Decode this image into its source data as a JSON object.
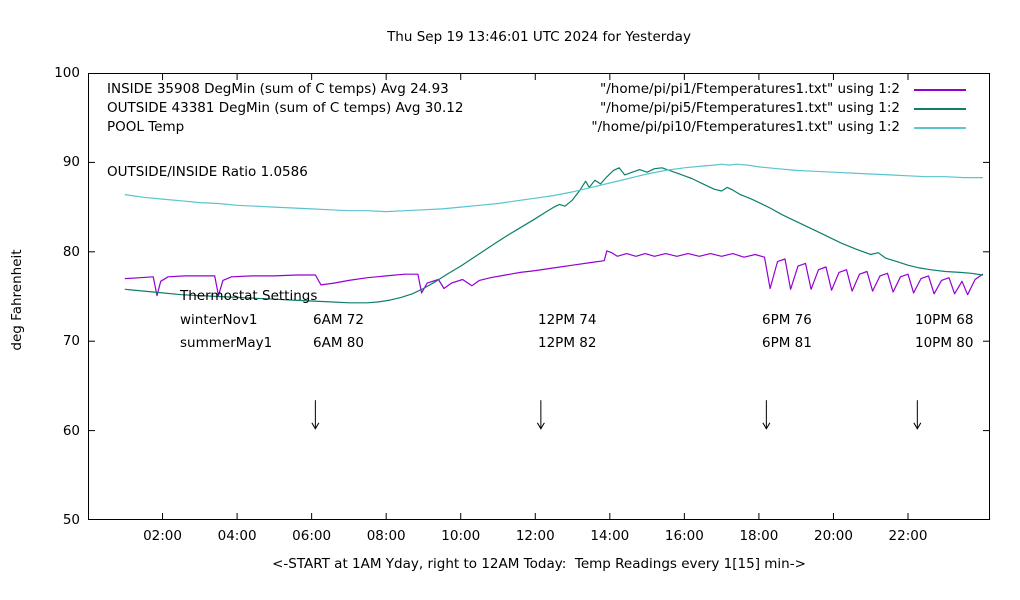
{
  "title": "Thu Sep 19 13:46:01 UTC 2024 for Yesterday",
  "ylabel": "deg Fahrenheit",
  "xlabel": "<-START at 1AM Yday, right to 12AM Today:  Temp Readings every 1[15] min->",
  "ratio_note": "OUTSIDE/INSIDE Ratio 1.0586",
  "legend": {
    "rows": [
      {
        "label": "INSIDE 35908 DegMin (sum of C temps) Avg 24.93",
        "source": "\"/home/pi/pi1/Ftemperatures1.txt\" using 1:2"
      },
      {
        "label": "OUTSIDE 43381 DegMin (sum of C temps) Avg 30.12",
        "source": "\"/home/pi/pi5/Ftemperatures1.txt\" using 1:2"
      },
      {
        "label": "POOL Temp",
        "source": "\"/home/pi/pi10/Ftemperatures1.txt\" using 1:2"
      }
    ]
  },
  "thermostat": {
    "heading": "Thermostat Settings",
    "rows": [
      {
        "name": "winterNov1",
        "settings": [
          "6AM 72",
          "12PM 74",
          "6PM 76",
          "10PM 68"
        ]
      },
      {
        "name": "summerMay1",
        "settings": [
          "6AM 80",
          "12PM 82",
          "6PM 81",
          "10PM 80"
        ]
      }
    ]
  },
  "chart_data": {
    "type": "line",
    "title": "Thu Sep 19 13:46:01 UTC 2024 for Yesterday",
    "xlabel": "<-START at 1AM Yday, right to 12AM Today:  Temp Readings every 1[15] min->",
    "ylabel": "deg Fahrenheit",
    "x_unit": "hour of day (1AM yesterday to 12AM today)",
    "xlim": [
      0,
      24.2
    ],
    "ylim": [
      50,
      100
    ],
    "grid": false,
    "legend_position": "top-left inside",
    "xticks": [
      {
        "h": 2,
        "label": "02:00"
      },
      {
        "h": 4,
        "label": "04:00"
      },
      {
        "h": 6,
        "label": "06:00"
      },
      {
        "h": 8,
        "label": "08:00"
      },
      {
        "h": 10,
        "label": "10:00"
      },
      {
        "h": 12,
        "label": "12:00"
      },
      {
        "h": 14,
        "label": "14:00"
      },
      {
        "h": 16,
        "label": "16:00"
      },
      {
        "h": 18,
        "label": "18:00"
      },
      {
        "h": 20,
        "label": "20:00"
      },
      {
        "h": 22,
        "label": "22:00"
      }
    ],
    "yticks": [
      50,
      60,
      70,
      80,
      90,
      100
    ],
    "arrow_marks": {
      "x_hours": [
        6.1,
        12.15,
        18.2,
        22.25
      ],
      "y_from": 63.4,
      "y_to": 60.2
    },
    "series": [
      {
        "name": "INSIDE",
        "color": "#9400d3",
        "points": [
          [
            1,
            77
          ],
          [
            1.4,
            77.1
          ],
          [
            1.75,
            77.2
          ],
          [
            1.85,
            75.1
          ],
          [
            1.95,
            76.7
          ],
          [
            2.15,
            77.2
          ],
          [
            2.6,
            77.3
          ],
          [
            3.1,
            77.3
          ],
          [
            3.4,
            77.3
          ],
          [
            3.5,
            75.1
          ],
          [
            3.62,
            76.8
          ],
          [
            3.85,
            77.2
          ],
          [
            4.4,
            77.3
          ],
          [
            5,
            77.3
          ],
          [
            5.6,
            77.4
          ],
          [
            6.1,
            77.4
          ],
          [
            6.25,
            76.3
          ],
          [
            6.6,
            76.5
          ],
          [
            7,
            76.8
          ],
          [
            7.5,
            77.1
          ],
          [
            8,
            77.3
          ],
          [
            8.5,
            77.5
          ],
          [
            8.85,
            77.5
          ],
          [
            8.95,
            75.4
          ],
          [
            9.1,
            76.5
          ],
          [
            9.4,
            76.9
          ],
          [
            9.55,
            75.9
          ],
          [
            9.75,
            76.5
          ],
          [
            10.05,
            76.9
          ],
          [
            10.3,
            76.2
          ],
          [
            10.5,
            76.8
          ],
          [
            10.8,
            77.1
          ],
          [
            11.2,
            77.4
          ],
          [
            11.6,
            77.7
          ],
          [
            12,
            77.9
          ],
          [
            12.5,
            78.2
          ],
          [
            13,
            78.5
          ],
          [
            13.5,
            78.8
          ],
          [
            13.85,
            79
          ],
          [
            13.92,
            80.1
          ],
          [
            14.05,
            79.9
          ],
          [
            14.2,
            79.5
          ],
          [
            14.45,
            79.8
          ],
          [
            14.7,
            79.5
          ],
          [
            14.95,
            79.8
          ],
          [
            15.2,
            79.5
          ],
          [
            15.5,
            79.8
          ],
          [
            15.8,
            79.5
          ],
          [
            16.1,
            79.8
          ],
          [
            16.4,
            79.5
          ],
          [
            16.7,
            79.8
          ],
          [
            17,
            79.5
          ],
          [
            17.3,
            79.8
          ],
          [
            17.6,
            79.4
          ],
          [
            17.9,
            79.7
          ],
          [
            18.15,
            79.4
          ],
          [
            18.3,
            75.9
          ],
          [
            18.5,
            78.9
          ],
          [
            18.7,
            79.2
          ],
          [
            18.85,
            75.8
          ],
          [
            19.05,
            78.4
          ],
          [
            19.25,
            78.7
          ],
          [
            19.4,
            75.8
          ],
          [
            19.6,
            78
          ],
          [
            19.8,
            78.3
          ],
          [
            19.95,
            75.7
          ],
          [
            20.15,
            77.7
          ],
          [
            20.35,
            78
          ],
          [
            20.5,
            75.6
          ],
          [
            20.7,
            77.5
          ],
          [
            20.9,
            77.8
          ],
          [
            21.05,
            75.6
          ],
          [
            21.25,
            77.3
          ],
          [
            21.45,
            77.6
          ],
          [
            21.6,
            75.5
          ],
          [
            21.8,
            77.2
          ],
          [
            22,
            77.5
          ],
          [
            22.15,
            75.4
          ],
          [
            22.35,
            77
          ],
          [
            22.55,
            77.3
          ],
          [
            22.7,
            75.3
          ],
          [
            22.9,
            76.8
          ],
          [
            23.1,
            77.1
          ],
          [
            23.25,
            75.3
          ],
          [
            23.45,
            76.7
          ],
          [
            23.6,
            75.2
          ],
          [
            23.8,
            76.9
          ],
          [
            24,
            77.5
          ]
        ]
      },
      {
        "name": "OUTSIDE",
        "color": "#0e7f6a",
        "points": [
          [
            1,
            75.8
          ],
          [
            1.5,
            75.6
          ],
          [
            2,
            75.4
          ],
          [
            2.5,
            75.2
          ],
          [
            3,
            75.1
          ],
          [
            3.5,
            75
          ],
          [
            4,
            74.9
          ],
          [
            4.5,
            74.8
          ],
          [
            5,
            74.7
          ],
          [
            5.5,
            74.6
          ],
          [
            6,
            74.5
          ],
          [
            6.5,
            74.4
          ],
          [
            7,
            74.3
          ],
          [
            7.5,
            74.3
          ],
          [
            7.8,
            74.4
          ],
          [
            8.1,
            74.6
          ],
          [
            8.4,
            74.9
          ],
          [
            8.7,
            75.3
          ],
          [
            9,
            75.9
          ],
          [
            9.3,
            76.6
          ],
          [
            9.6,
            77.4
          ],
          [
            10,
            78.4
          ],
          [
            10.4,
            79.5
          ],
          [
            10.8,
            80.6
          ],
          [
            11.2,
            81.7
          ],
          [
            11.6,
            82.7
          ],
          [
            12,
            83.7
          ],
          [
            12.3,
            84.5
          ],
          [
            12.5,
            85
          ],
          [
            12.65,
            85.3
          ],
          [
            12.8,
            85.1
          ],
          [
            13,
            85.8
          ],
          [
            13.2,
            86.9
          ],
          [
            13.35,
            87.9
          ],
          [
            13.45,
            87.2
          ],
          [
            13.6,
            88
          ],
          [
            13.75,
            87.6
          ],
          [
            13.9,
            88.3
          ],
          [
            14.1,
            89.1
          ],
          [
            14.25,
            89.4
          ],
          [
            14.4,
            88.6
          ],
          [
            14.6,
            88.9
          ],
          [
            14.8,
            89.2
          ],
          [
            15,
            88.9
          ],
          [
            15.2,
            89.3
          ],
          [
            15.4,
            89.4
          ],
          [
            15.6,
            89.1
          ],
          [
            15.8,
            88.8
          ],
          [
            16,
            88.5
          ],
          [
            16.2,
            88.2
          ],
          [
            16.5,
            87.6
          ],
          [
            16.8,
            87
          ],
          [
            17,
            86.8
          ],
          [
            17.15,
            87.2
          ],
          [
            17.3,
            86.9
          ],
          [
            17.5,
            86.4
          ],
          [
            17.8,
            85.9
          ],
          [
            18,
            85.5
          ],
          [
            18.3,
            84.9
          ],
          [
            18.6,
            84.2
          ],
          [
            19,
            83.4
          ],
          [
            19.4,
            82.6
          ],
          [
            19.8,
            81.8
          ],
          [
            20.2,
            81
          ],
          [
            20.6,
            80.3
          ],
          [
            21,
            79.7
          ],
          [
            21.2,
            79.9
          ],
          [
            21.4,
            79.3
          ],
          [
            21.7,
            78.9
          ],
          [
            22,
            78.5
          ],
          [
            22.3,
            78.2
          ],
          [
            22.6,
            78
          ],
          [
            23,
            77.8
          ],
          [
            23.4,
            77.7
          ],
          [
            23.7,
            77.6
          ],
          [
            24,
            77.4
          ]
        ]
      },
      {
        "name": "POOL",
        "color": "#58c5cf",
        "points": [
          [
            1,
            86.4
          ],
          [
            1.15,
            86.3
          ],
          [
            1.5,
            86.1
          ],
          [
            2,
            85.9
          ],
          [
            2.5,
            85.7
          ],
          [
            3,
            85.5
          ],
          [
            3.5,
            85.4
          ],
          [
            4,
            85.2
          ],
          [
            4.5,
            85.1
          ],
          [
            5,
            85
          ],
          [
            5.5,
            84.9
          ],
          [
            6,
            84.8
          ],
          [
            6.5,
            84.7
          ],
          [
            7,
            84.6
          ],
          [
            7.5,
            84.6
          ],
          [
            8,
            84.5
          ],
          [
            8.5,
            84.6
          ],
          [
            9,
            84.7
          ],
          [
            9.5,
            84.8
          ],
          [
            10,
            85
          ],
          [
            10.5,
            85.2
          ],
          [
            11,
            85.4
          ],
          [
            11.5,
            85.7
          ],
          [
            12,
            86
          ],
          [
            12.5,
            86.3
          ],
          [
            13,
            86.7
          ],
          [
            13.5,
            87.2
          ],
          [
            14,
            87.7
          ],
          [
            14.5,
            88.2
          ],
          [
            15,
            88.7
          ],
          [
            15.5,
            89.1
          ],
          [
            16,
            89.4
          ],
          [
            16.5,
            89.6
          ],
          [
            16.8,
            89.7
          ],
          [
            17,
            89.8
          ],
          [
            17.2,
            89.7
          ],
          [
            17.4,
            89.8
          ],
          [
            17.7,
            89.7
          ],
          [
            18,
            89.5
          ],
          [
            18.5,
            89.3
          ],
          [
            19,
            89.1
          ],
          [
            19.5,
            89
          ],
          [
            20,
            88.9
          ],
          [
            20.5,
            88.8
          ],
          [
            21,
            88.7
          ],
          [
            21.5,
            88.6
          ],
          [
            22,
            88.5
          ],
          [
            22.5,
            88.4
          ],
          [
            23,
            88.4
          ],
          [
            23.5,
            88.3
          ],
          [
            24,
            88.3
          ]
        ]
      }
    ]
  }
}
